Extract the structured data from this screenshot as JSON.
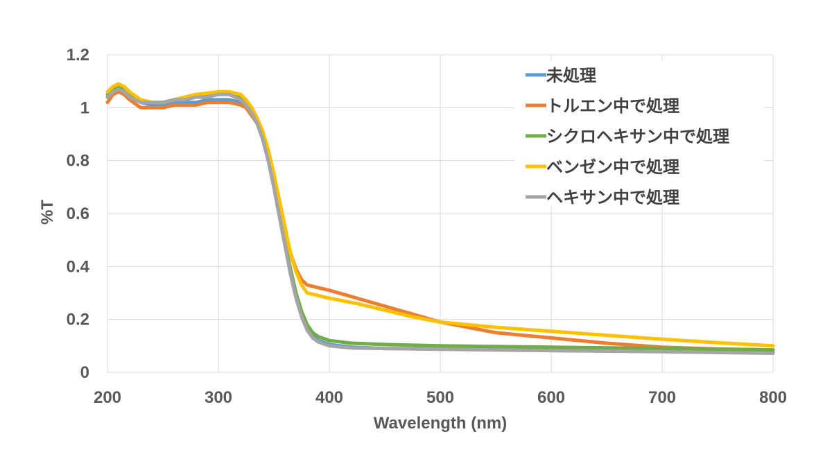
{
  "chart_data": {
    "type": "line",
    "xlabel": "Wavelength (nm)",
    "ylabel": "%T",
    "xlim": [
      200,
      800
    ],
    "ylim": [
      0,
      1.2
    ],
    "x_ticks": [
      "200",
      "300",
      "400",
      "500",
      "600",
      "700",
      "800"
    ],
    "y_ticks": [
      "0",
      "0.2",
      "0.4",
      "0.6",
      "0.8",
      "1",
      "1.2"
    ],
    "grid": true,
    "legend_position": "top-right",
    "series": [
      {
        "name": "未処理",
        "color": "#5b9bd5",
        "points": [
          [
            200,
            1.04
          ],
          [
            205,
            1.06
          ],
          [
            210,
            1.08
          ],
          [
            215,
            1.07
          ],
          [
            220,
            1.05
          ],
          [
            230,
            1.02
          ],
          [
            240,
            1.01
          ],
          [
            250,
            1.01
          ],
          [
            260,
            1.02
          ],
          [
            270,
            1.02
          ],
          [
            280,
            1.02
          ],
          [
            290,
            1.03
          ],
          [
            300,
            1.03
          ],
          [
            310,
            1.03
          ],
          [
            320,
            1.02
          ],
          [
            325,
            1.01
          ],
          [
            330,
            0.98
          ],
          [
            335,
            0.94
          ],
          [
            340,
            0.88
          ],
          [
            345,
            0.8
          ],
          [
            350,
            0.7
          ],
          [
            355,
            0.59
          ],
          [
            360,
            0.48
          ],
          [
            365,
            0.38
          ],
          [
            370,
            0.29
          ],
          [
            375,
            0.22
          ],
          [
            380,
            0.17
          ],
          [
            385,
            0.14
          ],
          [
            390,
            0.12
          ],
          [
            400,
            0.105
          ],
          [
            420,
            0.095
          ],
          [
            450,
            0.09
          ],
          [
            500,
            0.088
          ],
          [
            600,
            0.085
          ],
          [
            700,
            0.08
          ],
          [
            800,
            0.075
          ]
        ]
      },
      {
        "name": "トルエン中で処理",
        "color": "#ed7d31",
        "points": [
          [
            200,
            1.02
          ],
          [
            205,
            1.05
          ],
          [
            210,
            1.06
          ],
          [
            215,
            1.05
          ],
          [
            220,
            1.03
          ],
          [
            230,
            1.0
          ],
          [
            240,
            1.0
          ],
          [
            250,
            1.0
          ],
          [
            260,
            1.01
          ],
          [
            270,
            1.01
          ],
          [
            280,
            1.01
          ],
          [
            290,
            1.02
          ],
          [
            300,
            1.02
          ],
          [
            310,
            1.02
          ],
          [
            320,
            1.01
          ],
          [
            325,
            1.0
          ],
          [
            330,
            0.97
          ],
          [
            335,
            0.94
          ],
          [
            340,
            0.89
          ],
          [
            345,
            0.82
          ],
          [
            350,
            0.73
          ],
          [
            355,
            0.63
          ],
          [
            360,
            0.53
          ],
          [
            365,
            0.45
          ],
          [
            370,
            0.39
          ],
          [
            375,
            0.35
          ],
          [
            380,
            0.33
          ],
          [
            390,
            0.32
          ],
          [
            400,
            0.31
          ],
          [
            425,
            0.28
          ],
          [
            450,
            0.25
          ],
          [
            475,
            0.22
          ],
          [
            500,
            0.19
          ],
          [
            550,
            0.15
          ],
          [
            600,
            0.13
          ],
          [
            650,
            0.11
          ],
          [
            700,
            0.095
          ],
          [
            750,
            0.088
          ],
          [
            800,
            0.085
          ]
        ]
      },
      {
        "name": "シクロヘキサン中で処理",
        "color": "#70ad47",
        "points": [
          [
            200,
            1.05
          ],
          [
            205,
            1.07
          ],
          [
            210,
            1.08
          ],
          [
            215,
            1.07
          ],
          [
            220,
            1.05
          ],
          [
            230,
            1.03
          ],
          [
            240,
            1.02
          ],
          [
            250,
            1.02
          ],
          [
            260,
            1.03
          ],
          [
            270,
            1.04
          ],
          [
            280,
            1.05
          ],
          [
            290,
            1.05
          ],
          [
            300,
            1.06
          ],
          [
            310,
            1.05
          ],
          [
            320,
            1.04
          ],
          [
            325,
            1.02
          ],
          [
            330,
            0.99
          ],
          [
            335,
            0.95
          ],
          [
            340,
            0.89
          ],
          [
            345,
            0.81
          ],
          [
            350,
            0.71
          ],
          [
            355,
            0.6
          ],
          [
            360,
            0.49
          ],
          [
            365,
            0.39
          ],
          [
            370,
            0.3
          ],
          [
            375,
            0.23
          ],
          [
            380,
            0.18
          ],
          [
            385,
            0.15
          ],
          [
            390,
            0.135
          ],
          [
            400,
            0.12
          ],
          [
            420,
            0.11
          ],
          [
            450,
            0.105
          ],
          [
            500,
            0.1
          ],
          [
            600,
            0.095
          ],
          [
            700,
            0.09
          ],
          [
            800,
            0.085
          ]
        ]
      },
      {
        "name": "ベンゼン中で処理",
        "color": "#ffc000",
        "points": [
          [
            200,
            1.06
          ],
          [
            205,
            1.08
          ],
          [
            210,
            1.09
          ],
          [
            215,
            1.08
          ],
          [
            220,
            1.06
          ],
          [
            230,
            1.03
          ],
          [
            240,
            1.02
          ],
          [
            250,
            1.02
          ],
          [
            260,
            1.03
          ],
          [
            270,
            1.04
          ],
          [
            280,
            1.05
          ],
          [
            290,
            1.055
          ],
          [
            300,
            1.06
          ],
          [
            310,
            1.06
          ],
          [
            320,
            1.05
          ],
          [
            325,
            1.03
          ],
          [
            330,
            1.0
          ],
          [
            335,
            0.96
          ],
          [
            340,
            0.91
          ],
          [
            345,
            0.84
          ],
          [
            350,
            0.75
          ],
          [
            355,
            0.65
          ],
          [
            360,
            0.55
          ],
          [
            365,
            0.45
          ],
          [
            370,
            0.38
          ],
          [
            375,
            0.33
          ],
          [
            380,
            0.3
          ],
          [
            390,
            0.29
          ],
          [
            400,
            0.28
          ],
          [
            425,
            0.26
          ],
          [
            450,
            0.235
          ],
          [
            475,
            0.21
          ],
          [
            500,
            0.19
          ],
          [
            550,
            0.17
          ],
          [
            600,
            0.155
          ],
          [
            650,
            0.14
          ],
          [
            700,
            0.125
          ],
          [
            750,
            0.112
          ],
          [
            800,
            0.1
          ]
        ]
      },
      {
        "name": "ヘキサン中で処理",
        "color": "#a5a5a5",
        "points": [
          [
            200,
            1.04
          ],
          [
            205,
            1.06
          ],
          [
            210,
            1.07
          ],
          [
            215,
            1.06
          ],
          [
            220,
            1.04
          ],
          [
            230,
            1.02
          ],
          [
            240,
            1.02
          ],
          [
            250,
            1.02
          ],
          [
            260,
            1.03
          ],
          [
            270,
            1.03
          ],
          [
            280,
            1.04
          ],
          [
            290,
            1.04
          ],
          [
            300,
            1.05
          ],
          [
            310,
            1.05
          ],
          [
            320,
            1.03
          ],
          [
            325,
            1.01
          ],
          [
            330,
            0.98
          ],
          [
            335,
            0.94
          ],
          [
            340,
            0.88
          ],
          [
            345,
            0.8
          ],
          [
            350,
            0.7
          ],
          [
            355,
            0.59
          ],
          [
            360,
            0.48
          ],
          [
            365,
            0.37
          ],
          [
            370,
            0.28
          ],
          [
            375,
            0.21
          ],
          [
            380,
            0.16
          ],
          [
            385,
            0.13
          ],
          [
            390,
            0.115
          ],
          [
            400,
            0.1
          ],
          [
            420,
            0.092
          ],
          [
            450,
            0.09
          ],
          [
            500,
            0.087
          ],
          [
            600,
            0.082
          ],
          [
            700,
            0.078
          ],
          [
            800,
            0.072
          ]
        ]
      }
    ]
  }
}
